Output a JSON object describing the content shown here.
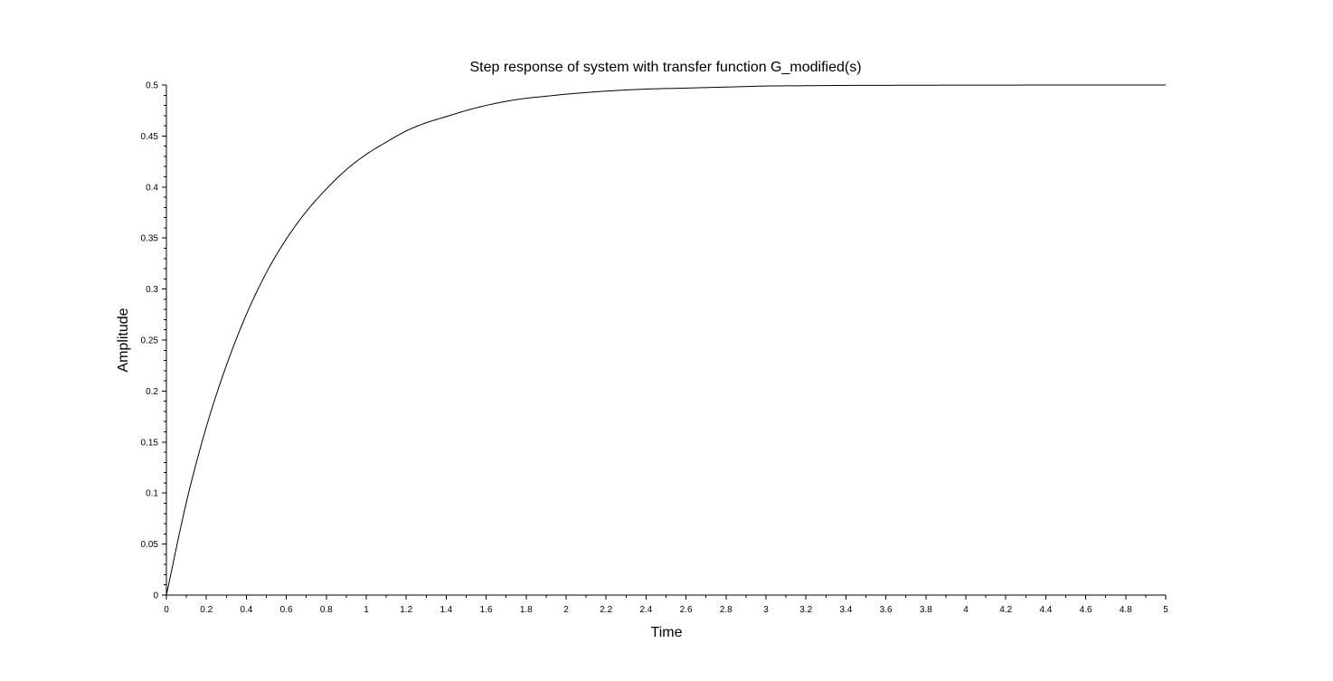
{
  "chart_data": {
    "type": "line",
    "title": "Step response of system with transfer function G_modified(s)",
    "xlabel": "Time",
    "ylabel": "Amplitude",
    "xlim": [
      0,
      5
    ],
    "ylim": [
      0,
      0.5
    ],
    "x_ticks": [
      "0",
      "0.2",
      "0.4",
      "0.6",
      "0.8",
      "1",
      "1.2",
      "1.4",
      "1.6",
      "1.8",
      "2",
      "2.2",
      "2.4",
      "2.6",
      "2.8",
      "3",
      "3.2",
      "3.4",
      "3.6",
      "3.8",
      "4",
      "4.2",
      "4.4",
      "4.6",
      "4.8",
      "5"
    ],
    "y_ticks": [
      "0",
      "0.05",
      "0.1",
      "0.15",
      "0.2",
      "0.25",
      "0.3",
      "0.35",
      "0.4",
      "0.45",
      "0.5"
    ],
    "grid": false,
    "line_color": "#000000",
    "series": [
      {
        "x": [
          0,
          0.1,
          0.2,
          0.3,
          0.4,
          0.5,
          0.6,
          0.7,
          0.8,
          0.9,
          1.0,
          1.1,
          1.2,
          1.3,
          1.4,
          1.5,
          1.6,
          1.7,
          1.8,
          1.9,
          2.0,
          2.2,
          2.4,
          2.6,
          2.8,
          3.0,
          3.2,
          3.4,
          3.6,
          3.8,
          4.0,
          4.2,
          4.4,
          4.6,
          4.8,
          5.0
        ],
        "y": [
          0,
          0.091,
          0.165,
          0.225,
          0.275,
          0.316,
          0.349,
          0.376,
          0.398,
          0.417,
          0.432,
          0.444,
          0.455,
          0.463,
          0.469,
          0.475,
          0.48,
          0.484,
          0.487,
          0.489,
          0.491,
          0.494,
          0.496,
          0.497,
          0.498,
          0.499,
          0.4993,
          0.4996,
          0.4997,
          0.4998,
          0.4999,
          0.4999,
          0.5,
          0.5,
          0.5,
          0.5
        ]
      }
    ]
  }
}
